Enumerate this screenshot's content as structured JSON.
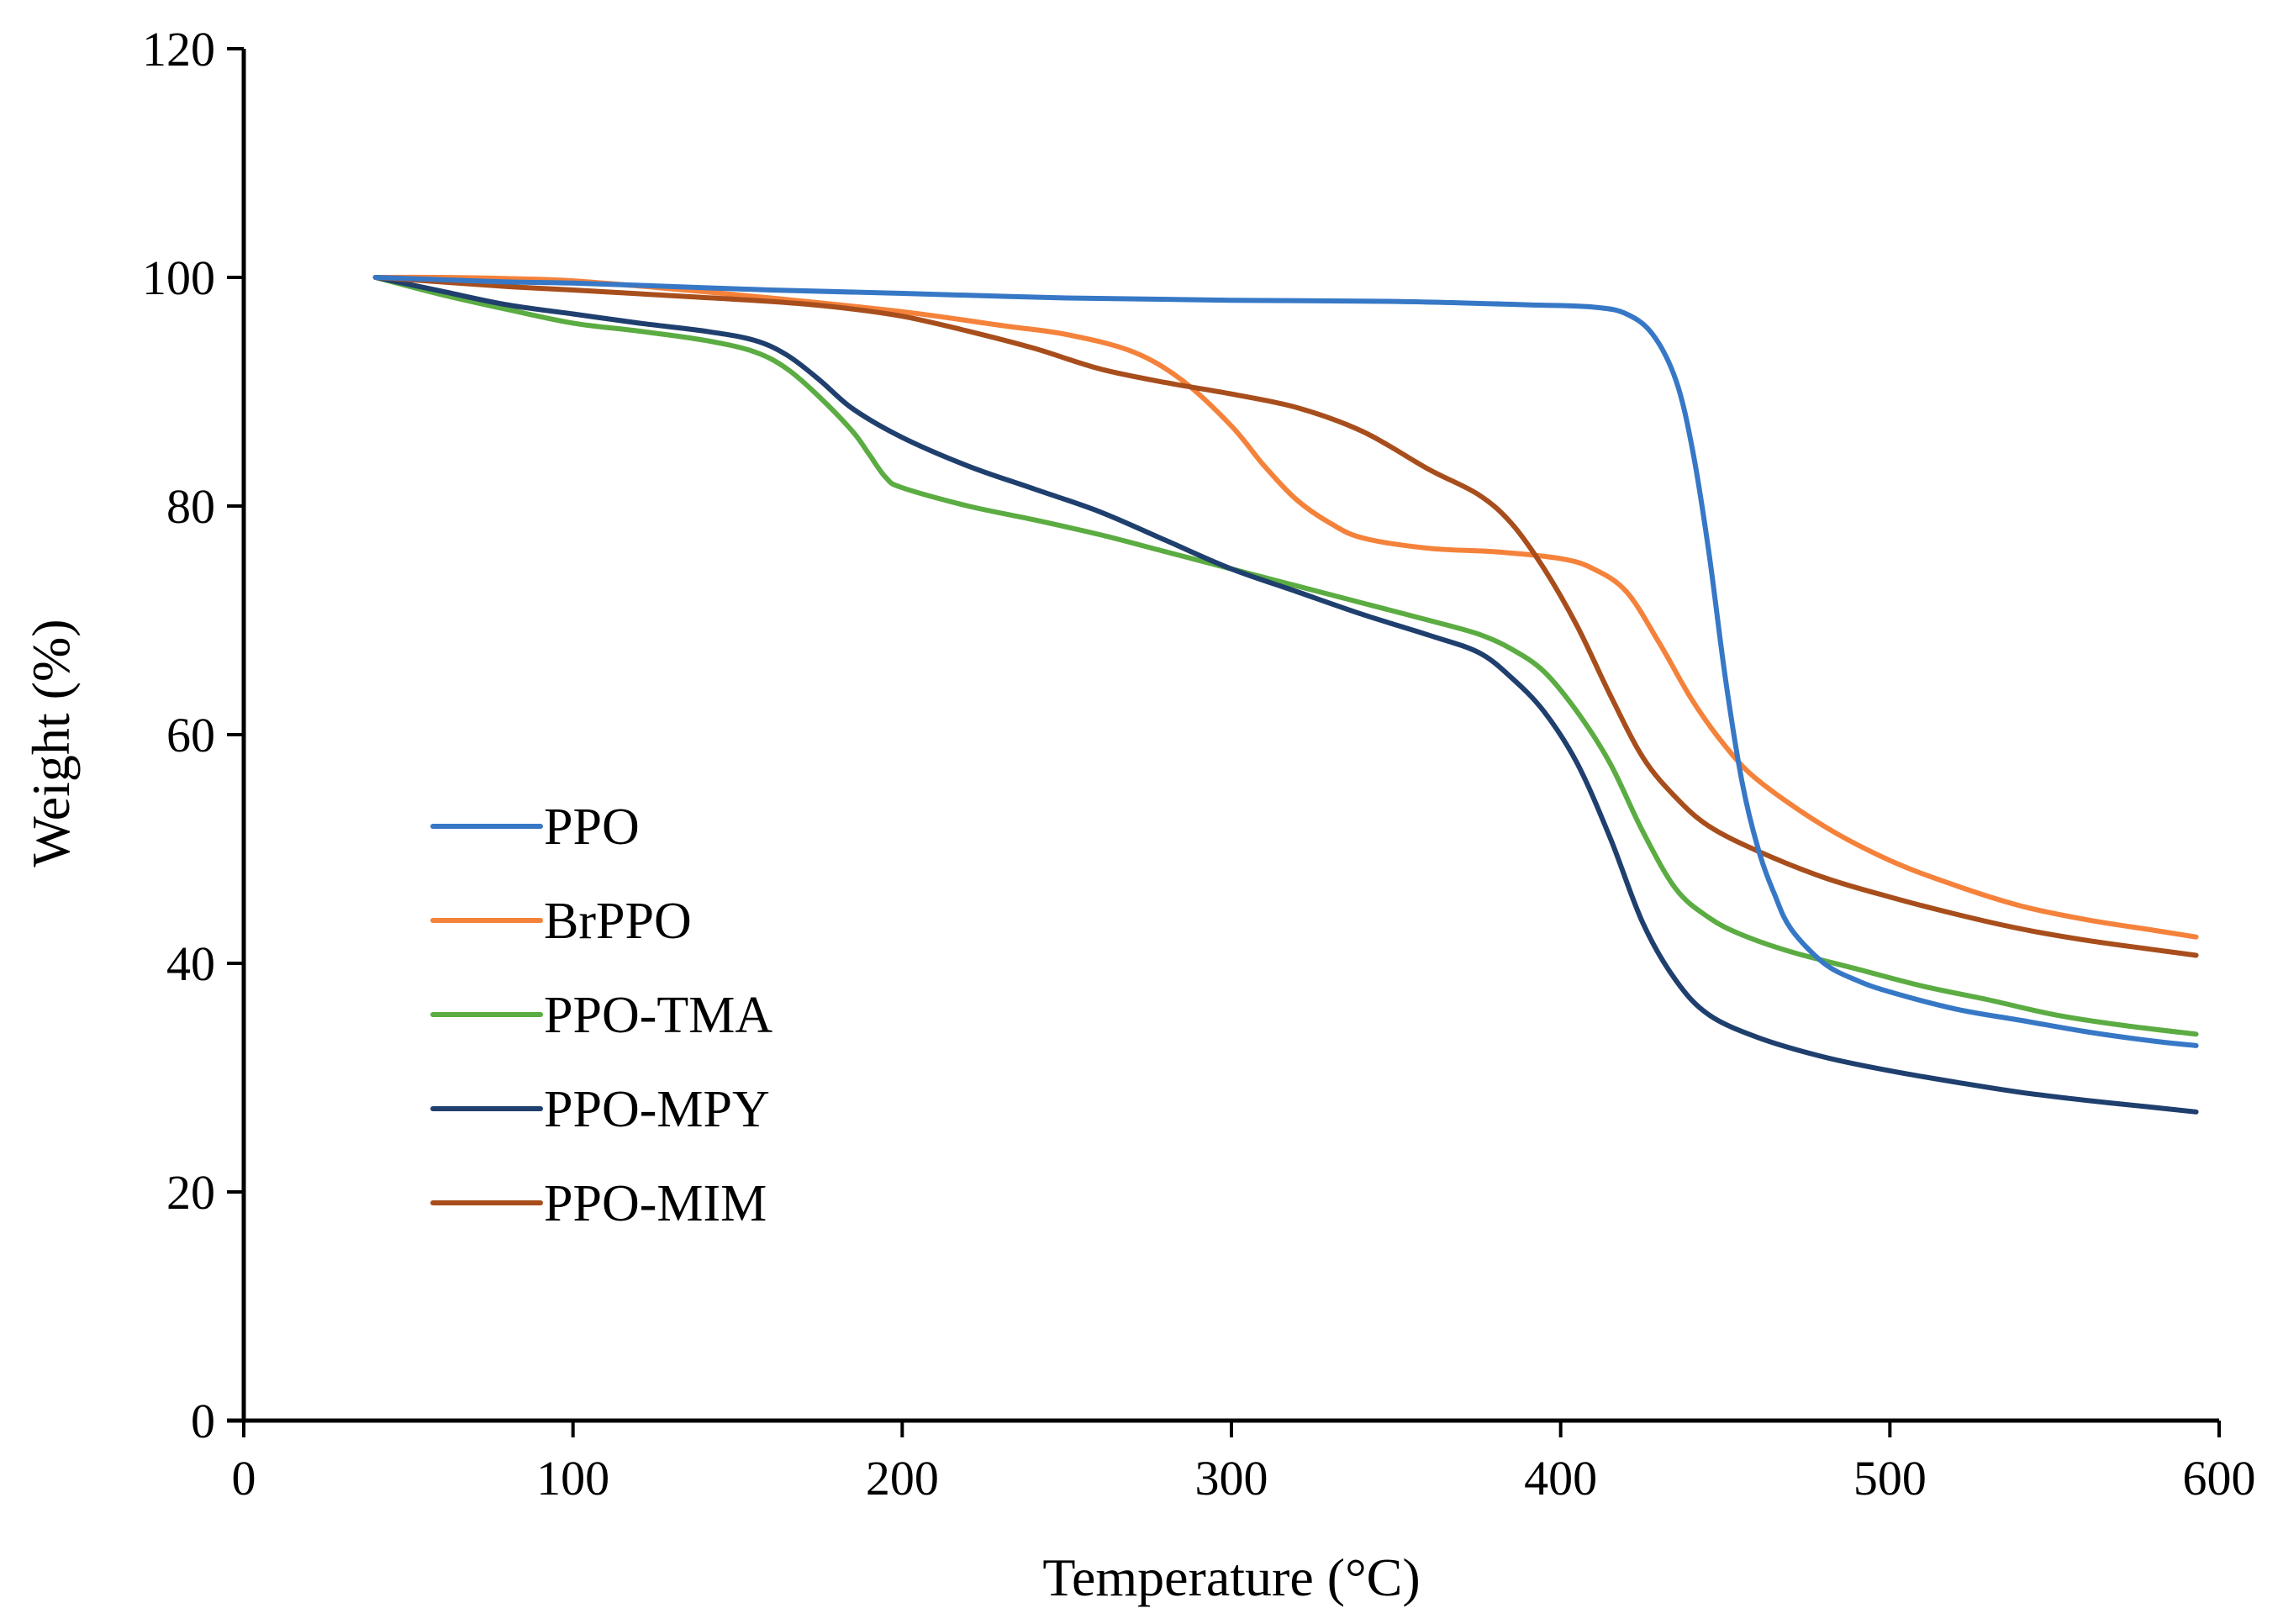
{
  "chart_data": {
    "type": "line",
    "title": "",
    "xlabel": "Temperature (°C)",
    "ylabel": "Weight (%)",
    "xlim": [
      0,
      600
    ],
    "ylim": [
      0,
      120
    ],
    "xticks": [
      0,
      100,
      200,
      300,
      400,
      500,
      600
    ],
    "yticks": [
      0,
      20,
      40,
      60,
      80,
      100,
      120
    ],
    "grid": false,
    "legend_position": "left-middle",
    "series": [
      {
        "name": "PPO",
        "color": "#3778C6",
        "points": [
          [
            40,
            100
          ],
          [
            60,
            99.8
          ],
          [
            80,
            99.6
          ],
          [
            100,
            99.5
          ],
          [
            130,
            99.2
          ],
          [
            160,
            98.9
          ],
          [
            200,
            98.6
          ],
          [
            250,
            98.2
          ],
          [
            300,
            98.0
          ],
          [
            350,
            97.9
          ],
          [
            390,
            97.6
          ],
          [
            410,
            97.4
          ],
          [
            420,
            96.8
          ],
          [
            428,
            95.0
          ],
          [
            435,
            91.0
          ],
          [
            440,
            85.0
          ],
          [
            445,
            76.0
          ],
          [
            450,
            65.0
          ],
          [
            455,
            56.0
          ],
          [
            460,
            50.0
          ],
          [
            465,
            46.0
          ],
          [
            470,
            43.0
          ],
          [
            480,
            40.0
          ],
          [
            490,
            38.5
          ],
          [
            500,
            37.5
          ],
          [
            520,
            36.0
          ],
          [
            540,
            35.0
          ],
          [
            560,
            34.0
          ],
          [
            580,
            33.2
          ],
          [
            593,
            32.8
          ]
        ]
      },
      {
        "name": "BrPPO",
        "color": "#F5823B",
        "points": [
          [
            40,
            100
          ],
          [
            60,
            100
          ],
          [
            80,
            99.9
          ],
          [
            100,
            99.7
          ],
          [
            130,
            99.0
          ],
          [
            160,
            98.2
          ],
          [
            200,
            97.0
          ],
          [
            230,
            95.8
          ],
          [
            250,
            95.0
          ],
          [
            270,
            93.5
          ],
          [
            285,
            91.0
          ],
          [
            300,
            87.0
          ],
          [
            310,
            83.5
          ],
          [
            320,
            80.5
          ],
          [
            330,
            78.5
          ],
          [
            340,
            77.2
          ],
          [
            360,
            76.3
          ],
          [
            380,
            76.0
          ],
          [
            400,
            75.4
          ],
          [
            410,
            74.5
          ],
          [
            420,
            72.5
          ],
          [
            430,
            68.0
          ],
          [
            440,
            63.0
          ],
          [
            450,
            59.0
          ],
          [
            460,
            56.0
          ],
          [
            480,
            52.0
          ],
          [
            500,
            49.0
          ],
          [
            520,
            46.8
          ],
          [
            540,
            45.0
          ],
          [
            560,
            43.8
          ],
          [
            580,
            42.9
          ],
          [
            593,
            42.3
          ]
        ]
      },
      {
        "name": "PPO-TMA",
        "color": "#5BAC42",
        "points": [
          [
            40,
            100
          ],
          [
            60,
            98.5
          ],
          [
            80,
            97.2
          ],
          [
            100,
            96.0
          ],
          [
            120,
            95.3
          ],
          [
            140,
            94.5
          ],
          [
            155,
            93.5
          ],
          [
            165,
            92.0
          ],
          [
            175,
            89.5
          ],
          [
            185,
            86.5
          ],
          [
            190,
            84.5
          ],
          [
            195,
            82.5
          ],
          [
            200,
            81.6
          ],
          [
            220,
            80.0
          ],
          [
            240,
            78.8
          ],
          [
            260,
            77.5
          ],
          [
            280,
            76.0
          ],
          [
            300,
            74.5
          ],
          [
            320,
            73.0
          ],
          [
            340,
            71.5
          ],
          [
            360,
            70.0
          ],
          [
            375,
            68.8
          ],
          [
            385,
            67.5
          ],
          [
            395,
            65.5
          ],
          [
            405,
            62.0
          ],
          [
            415,
            57.5
          ],
          [
            425,
            51.5
          ],
          [
            435,
            46.5
          ],
          [
            445,
            44.0
          ],
          [
            455,
            42.5
          ],
          [
            470,
            41.0
          ],
          [
            490,
            39.5
          ],
          [
            510,
            38.0
          ],
          [
            530,
            36.8
          ],
          [
            550,
            35.5
          ],
          [
            570,
            34.6
          ],
          [
            593,
            33.8
          ]
        ]
      },
      {
        "name": "PPO-MPY",
        "color": "#1F3F6E",
        "points": [
          [
            40,
            100
          ],
          [
            60,
            98.8
          ],
          [
            80,
            97.6
          ],
          [
            100,
            96.8
          ],
          [
            120,
            96.0
          ],
          [
            140,
            95.3
          ],
          [
            155,
            94.5
          ],
          [
            165,
            93.2
          ],
          [
            175,
            91.0
          ],
          [
            185,
            88.5
          ],
          [
            200,
            86.0
          ],
          [
            220,
            83.5
          ],
          [
            240,
            81.5
          ],
          [
            260,
            79.5
          ],
          [
            280,
            77.0
          ],
          [
            300,
            74.5
          ],
          [
            320,
            72.5
          ],
          [
            340,
            70.5
          ],
          [
            360,
            68.7
          ],
          [
            375,
            67.2
          ],
          [
            385,
            65.0
          ],
          [
            395,
            62.0
          ],
          [
            405,
            57.5
          ],
          [
            415,
            51.0
          ],
          [
            425,
            43.5
          ],
          [
            435,
            38.5
          ],
          [
            445,
            35.5
          ],
          [
            460,
            33.5
          ],
          [
            480,
            31.8
          ],
          [
            500,
            30.6
          ],
          [
            520,
            29.6
          ],
          [
            540,
            28.7
          ],
          [
            560,
            28.0
          ],
          [
            580,
            27.4
          ],
          [
            593,
            27.0
          ]
        ]
      },
      {
        "name": "PPO-MIM",
        "color": "#A84E1C",
        "points": [
          [
            40,
            100
          ],
          [
            60,
            99.6
          ],
          [
            80,
            99.2
          ],
          [
            100,
            98.9
          ],
          [
            130,
            98.4
          ],
          [
            160,
            97.9
          ],
          [
            180,
            97.4
          ],
          [
            200,
            96.6
          ],
          [
            220,
            95.3
          ],
          [
            240,
            93.8
          ],
          [
            260,
            92.0
          ],
          [
            280,
            90.8
          ],
          [
            300,
            89.8
          ],
          [
            320,
            88.6
          ],
          [
            340,
            86.5
          ],
          [
            360,
            83.2
          ],
          [
            375,
            81.0
          ],
          [
            385,
            78.5
          ],
          [
            395,
            74.5
          ],
          [
            405,
            69.5
          ],
          [
            415,
            63.5
          ],
          [
            425,
            58.0
          ],
          [
            435,
            54.5
          ],
          [
            445,
            52.0
          ],
          [
            460,
            49.8
          ],
          [
            480,
            47.5
          ],
          [
            500,
            45.8
          ],
          [
            520,
            44.3
          ],
          [
            540,
            43.0
          ],
          [
            560,
            42.0
          ],
          [
            580,
            41.2
          ],
          [
            593,
            40.7
          ]
        ]
      }
    ]
  }
}
